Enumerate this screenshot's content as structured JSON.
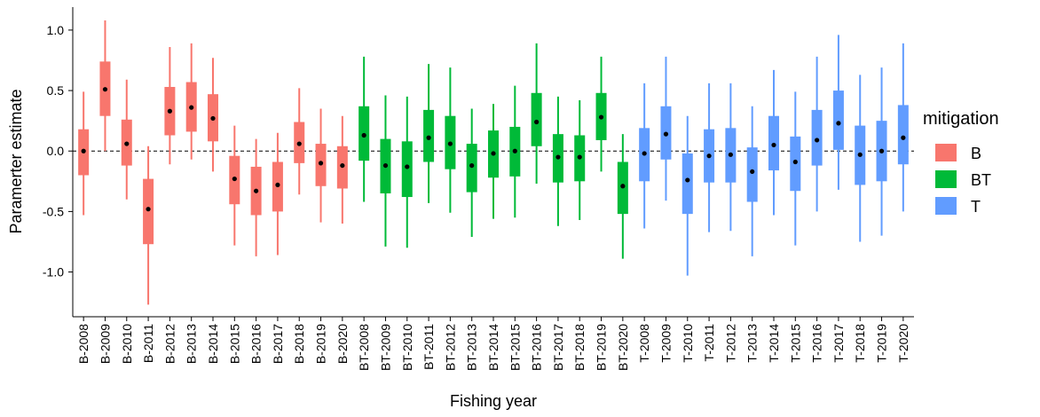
{
  "chart_data": {
    "type": "box",
    "x_label": "Fishing year",
    "y_label": "Paramerter estimate",
    "legend_title": "mitigation",
    "ylim": [
      -1.37,
      1.19
    ],
    "yticks": [
      {
        "value": 1,
        "label": "1.0"
      },
      {
        "value": 0.5,
        "label": "0.5"
      },
      {
        "value": 0,
        "label": "0.0"
      },
      {
        "value": -0.5,
        "label": "-0.5"
      },
      {
        "value": -1,
        "label": "-1.0"
      }
    ],
    "reference_line": 0,
    "legend": "right",
    "series": [
      {
        "name": "B",
        "color": "#f8766d",
        "categories": [
          "B-2008",
          "B-2009",
          "B-2010",
          "B-2011",
          "B-2012",
          "B-2013",
          "B-2014",
          "B-2015",
          "B-2016",
          "B-2017",
          "B-2018",
          "B-2019",
          "B-2020"
        ],
        "low": [
          -0.53,
          0.0,
          -0.4,
          -1.27,
          -0.11,
          -0.07,
          -0.17,
          -0.78,
          -0.87,
          -0.86,
          -0.36,
          -0.59,
          -0.6
        ],
        "q1": [
          -0.2,
          0.29,
          -0.12,
          -0.77,
          0.13,
          0.16,
          0.08,
          -0.44,
          -0.53,
          -0.5,
          -0.1,
          -0.29,
          -0.31
        ],
        "median": [
          0.0,
          0.51,
          0.06,
          -0.48,
          0.33,
          0.36,
          0.27,
          -0.23,
          -0.33,
          -0.28,
          0.06,
          -0.1,
          -0.12
        ],
        "q3": [
          0.18,
          0.74,
          0.26,
          -0.23,
          0.53,
          0.57,
          0.47,
          -0.04,
          -0.13,
          -0.09,
          0.24,
          0.06,
          0.04
        ],
        "high": [
          0.49,
          1.08,
          0.59,
          0.04,
          0.86,
          0.89,
          0.77,
          0.21,
          0.1,
          0.15,
          0.52,
          0.35,
          0.29
        ]
      },
      {
        "name": "BT",
        "color": "#00ba38",
        "categories": [
          "BT-2008",
          "BT-2009",
          "BT-2010",
          "BT-2011",
          "BT-2012",
          "BT-2013",
          "BT-2014",
          "BT-2015",
          "BT-2016",
          "BT-2017",
          "BT-2018",
          "BT-2019",
          "BT-2020"
        ],
        "low": [
          -0.42,
          -0.79,
          -0.8,
          -0.43,
          -0.51,
          -0.71,
          -0.56,
          -0.55,
          -0.27,
          -0.62,
          -0.57,
          -0.17,
          -0.89
        ],
        "q1": [
          -0.08,
          -0.35,
          -0.38,
          -0.09,
          -0.15,
          -0.34,
          -0.22,
          -0.21,
          0.04,
          -0.26,
          -0.25,
          0.09,
          -0.52
        ],
        "median": [
          0.13,
          -0.12,
          -0.13,
          0.11,
          0.06,
          -0.12,
          -0.02,
          0.0,
          0.24,
          -0.05,
          -0.05,
          0.28,
          -0.29
        ],
        "q3": [
          0.37,
          0.1,
          0.08,
          0.34,
          0.29,
          0.06,
          0.17,
          0.2,
          0.48,
          0.14,
          0.13,
          0.48,
          -0.09
        ],
        "high": [
          0.78,
          0.46,
          0.45,
          0.72,
          0.69,
          0.35,
          0.39,
          0.54,
          0.89,
          0.45,
          0.42,
          0.78,
          0.14
        ]
      },
      {
        "name": "T",
        "color": "#619cff",
        "categories": [
          "T-2008",
          "T-2009",
          "T-2010",
          "T-2011",
          "T-2012",
          "T-2013",
          "T-2014",
          "T-2015",
          "T-2016",
          "T-2017",
          "T-2018",
          "T-2019",
          "T-2020"
        ],
        "low": [
          -0.64,
          -0.41,
          -1.03,
          -0.67,
          -0.66,
          -0.87,
          -0.53,
          -0.78,
          -0.5,
          -0.32,
          -0.75,
          -0.7,
          -0.5
        ],
        "q1": [
          -0.25,
          -0.07,
          -0.52,
          -0.26,
          -0.26,
          -0.42,
          -0.16,
          -0.33,
          -0.12,
          0.01,
          -0.28,
          -0.25,
          -0.11
        ],
        "median": [
          -0.02,
          0.14,
          -0.24,
          -0.04,
          -0.03,
          -0.17,
          0.05,
          -0.09,
          0.09,
          0.23,
          -0.03,
          0.0,
          0.11
        ],
        "q3": [
          0.19,
          0.37,
          -0.02,
          0.18,
          0.19,
          0.03,
          0.29,
          0.12,
          0.34,
          0.5,
          0.21,
          0.25,
          0.38
        ],
        "high": [
          0.56,
          0.78,
          0.29,
          0.56,
          0.56,
          0.37,
          0.67,
          0.49,
          0.78,
          0.96,
          0.63,
          0.69,
          0.89
        ]
      }
    ]
  }
}
